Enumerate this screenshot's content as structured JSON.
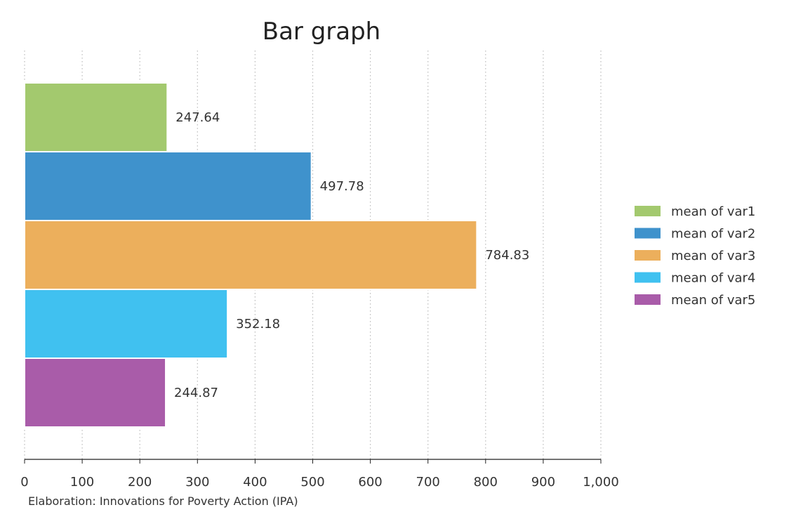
{
  "chart_data": {
    "type": "bar",
    "orientation": "horizontal",
    "title": "Bar graph",
    "xlabel": "",
    "ylabel": "",
    "caption": "Elaboration: Innovations for Poverty Action (IPA)",
    "xlim": [
      0,
      1000
    ],
    "x_ticks": [
      "0",
      "100",
      "200",
      "300",
      "400",
      "500",
      "600",
      "700",
      "800",
      "900",
      "1,000"
    ],
    "grid": "vertical dotted",
    "legend_position": "right",
    "series": [
      {
        "name": "mean of var1",
        "value": 247.64,
        "label": "247.64",
        "color": "#a3c96e"
      },
      {
        "name": "mean of var2",
        "value": 497.78,
        "label": "497.78",
        "color": "#3f92cc"
      },
      {
        "name": "mean of var3",
        "value": 784.83,
        "label": "784.83",
        "color": "#ecaf5c"
      },
      {
        "name": "mean of var4",
        "value": 352.18,
        "label": "352.18",
        "color": "#40c1f0"
      },
      {
        "name": "mean of var5",
        "value": 244.87,
        "label": "244.87",
        "color": "#a95ca9"
      }
    ]
  }
}
